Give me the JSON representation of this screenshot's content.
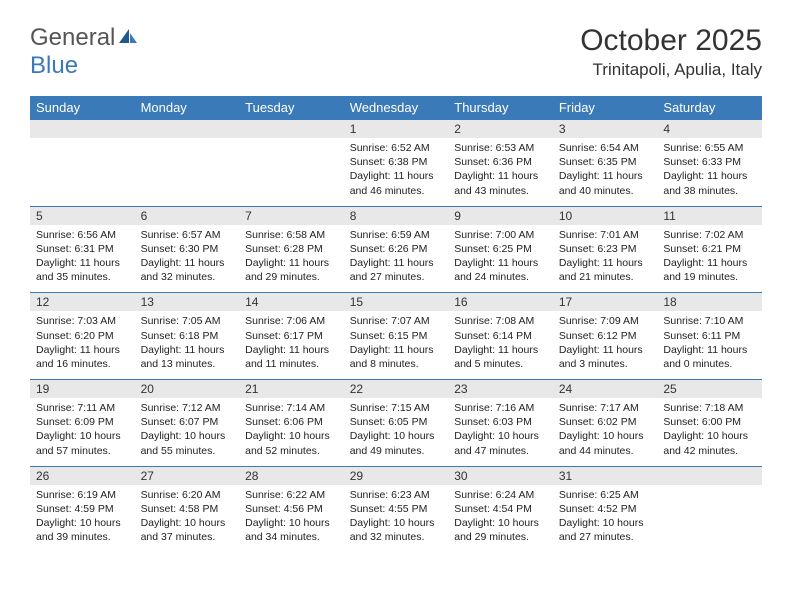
{
  "logo": {
    "text_general": "General",
    "text_blue": "Blue"
  },
  "title": "October 2025",
  "location": "Trinitapoli, Apulia, Italy",
  "colors": {
    "header_bg": "#3a7ab8",
    "header_fg": "#ffffff",
    "daynum_bg": "#e8e8e8",
    "border": "#3a7ab8",
    "text": "#222222"
  },
  "day_names": [
    "Sunday",
    "Monday",
    "Tuesday",
    "Wednesday",
    "Thursday",
    "Friday",
    "Saturday"
  ],
  "weeks": [
    [
      null,
      null,
      null,
      {
        "n": "1",
        "sr": "6:52 AM",
        "ss": "6:38 PM",
        "dl": "11 hours and 46 minutes."
      },
      {
        "n": "2",
        "sr": "6:53 AM",
        "ss": "6:36 PM",
        "dl": "11 hours and 43 minutes."
      },
      {
        "n": "3",
        "sr": "6:54 AM",
        "ss": "6:35 PM",
        "dl": "11 hours and 40 minutes."
      },
      {
        "n": "4",
        "sr": "6:55 AM",
        "ss": "6:33 PM",
        "dl": "11 hours and 38 minutes."
      }
    ],
    [
      {
        "n": "5",
        "sr": "6:56 AM",
        "ss": "6:31 PM",
        "dl": "11 hours and 35 minutes."
      },
      {
        "n": "6",
        "sr": "6:57 AM",
        "ss": "6:30 PM",
        "dl": "11 hours and 32 minutes."
      },
      {
        "n": "7",
        "sr": "6:58 AM",
        "ss": "6:28 PM",
        "dl": "11 hours and 29 minutes."
      },
      {
        "n": "8",
        "sr": "6:59 AM",
        "ss": "6:26 PM",
        "dl": "11 hours and 27 minutes."
      },
      {
        "n": "9",
        "sr": "7:00 AM",
        "ss": "6:25 PM",
        "dl": "11 hours and 24 minutes."
      },
      {
        "n": "10",
        "sr": "7:01 AM",
        "ss": "6:23 PM",
        "dl": "11 hours and 21 minutes."
      },
      {
        "n": "11",
        "sr": "7:02 AM",
        "ss": "6:21 PM",
        "dl": "11 hours and 19 minutes."
      }
    ],
    [
      {
        "n": "12",
        "sr": "7:03 AM",
        "ss": "6:20 PM",
        "dl": "11 hours and 16 minutes."
      },
      {
        "n": "13",
        "sr": "7:05 AM",
        "ss": "6:18 PM",
        "dl": "11 hours and 13 minutes."
      },
      {
        "n": "14",
        "sr": "7:06 AM",
        "ss": "6:17 PM",
        "dl": "11 hours and 11 minutes."
      },
      {
        "n": "15",
        "sr": "7:07 AM",
        "ss": "6:15 PM",
        "dl": "11 hours and 8 minutes."
      },
      {
        "n": "16",
        "sr": "7:08 AM",
        "ss": "6:14 PM",
        "dl": "11 hours and 5 minutes."
      },
      {
        "n": "17",
        "sr": "7:09 AM",
        "ss": "6:12 PM",
        "dl": "11 hours and 3 minutes."
      },
      {
        "n": "18",
        "sr": "7:10 AM",
        "ss": "6:11 PM",
        "dl": "11 hours and 0 minutes."
      }
    ],
    [
      {
        "n": "19",
        "sr": "7:11 AM",
        "ss": "6:09 PM",
        "dl": "10 hours and 57 minutes."
      },
      {
        "n": "20",
        "sr": "7:12 AM",
        "ss": "6:07 PM",
        "dl": "10 hours and 55 minutes."
      },
      {
        "n": "21",
        "sr": "7:14 AM",
        "ss": "6:06 PM",
        "dl": "10 hours and 52 minutes."
      },
      {
        "n": "22",
        "sr": "7:15 AM",
        "ss": "6:05 PM",
        "dl": "10 hours and 49 minutes."
      },
      {
        "n": "23",
        "sr": "7:16 AM",
        "ss": "6:03 PM",
        "dl": "10 hours and 47 minutes."
      },
      {
        "n": "24",
        "sr": "7:17 AM",
        "ss": "6:02 PM",
        "dl": "10 hours and 44 minutes."
      },
      {
        "n": "25",
        "sr": "7:18 AM",
        "ss": "6:00 PM",
        "dl": "10 hours and 42 minutes."
      }
    ],
    [
      {
        "n": "26",
        "sr": "6:19 AM",
        "ss": "4:59 PM",
        "dl": "10 hours and 39 minutes."
      },
      {
        "n": "27",
        "sr": "6:20 AM",
        "ss": "4:58 PM",
        "dl": "10 hours and 37 minutes."
      },
      {
        "n": "28",
        "sr": "6:22 AM",
        "ss": "4:56 PM",
        "dl": "10 hours and 34 minutes."
      },
      {
        "n": "29",
        "sr": "6:23 AM",
        "ss": "4:55 PM",
        "dl": "10 hours and 32 minutes."
      },
      {
        "n": "30",
        "sr": "6:24 AM",
        "ss": "4:54 PM",
        "dl": "10 hours and 29 minutes."
      },
      {
        "n": "31",
        "sr": "6:25 AM",
        "ss": "4:52 PM",
        "dl": "10 hours and 27 minutes."
      },
      null
    ]
  ],
  "labels": {
    "sunrise": "Sunrise:",
    "sunset": "Sunset:",
    "daylight": "Daylight:"
  }
}
